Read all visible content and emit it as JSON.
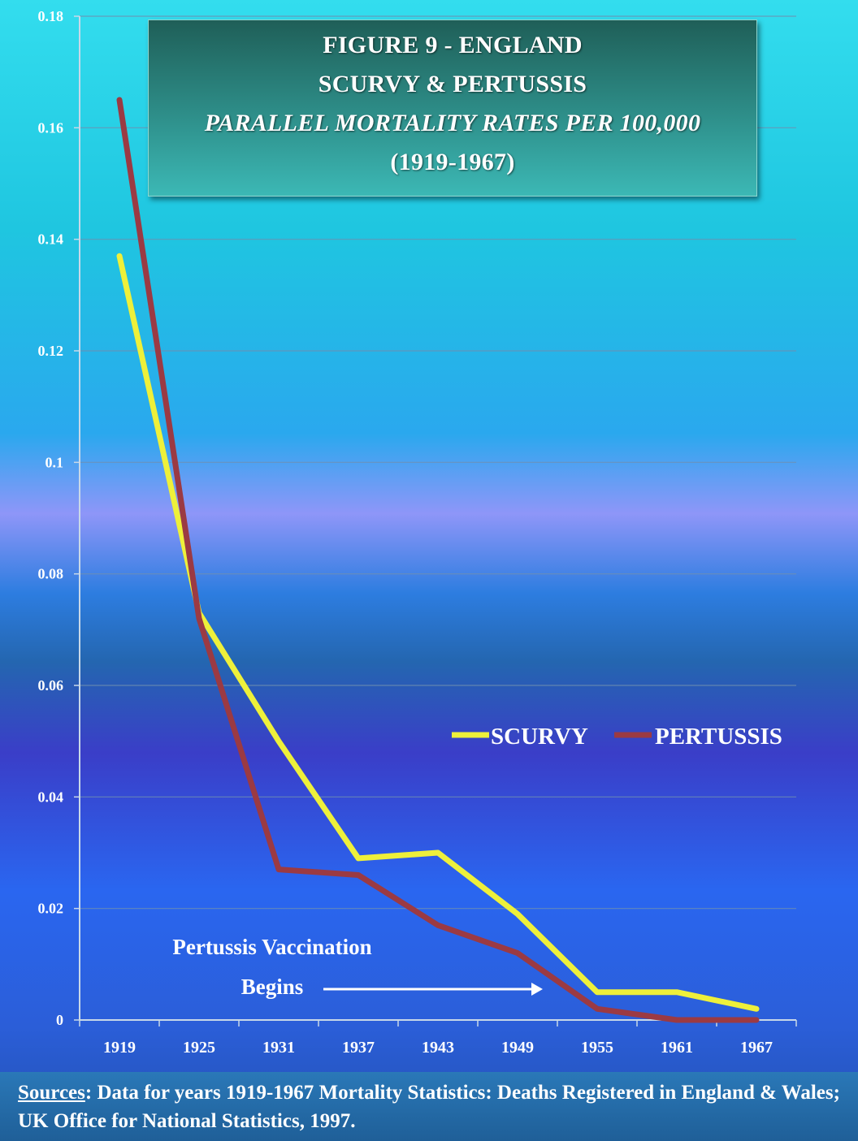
{
  "chart_data": {
    "type": "line",
    "title": [
      "FIGURE 9 - ENGLAND",
      "SCURVY & PERTUSSIS",
      "PARALLEL MORTALITY RATES PER 100,000",
      "(1919-1967)"
    ],
    "x": [
      "1919",
      "1925",
      "1931",
      "1937",
      "1943",
      "1949",
      "1955",
      "1961",
      "1967"
    ],
    "series": [
      {
        "name": "SCURVY",
        "color": "#eef03a",
        "values": [
          0.137,
          0.073,
          0.05,
          0.029,
          0.03,
          0.019,
          0.005,
          0.005,
          0.002
        ]
      },
      {
        "name": "PERTUSSIS",
        "color": "#9b3a43",
        "values": [
          0.165,
          0.072,
          0.027,
          0.026,
          0.017,
          0.012,
          0.002,
          0.0,
          0.0
        ]
      }
    ],
    "ylim": [
      0,
      0.18
    ],
    "yticks": [
      "0",
      "0.02",
      "0.04",
      "0.06",
      "0.08",
      "0.1",
      "0.12",
      "0.14",
      "0.16",
      "0.18"
    ],
    "grid": true,
    "legend": "right",
    "annotation": {
      "line1": "Pertussis Vaccination",
      "line2": "Begins"
    }
  },
  "footer": {
    "label": "Sources",
    "text": ": Data for years 1919-1967 Mortality Statistics: Deaths Registered in England & Wales;  UK Office for National Statistics, 1997."
  }
}
